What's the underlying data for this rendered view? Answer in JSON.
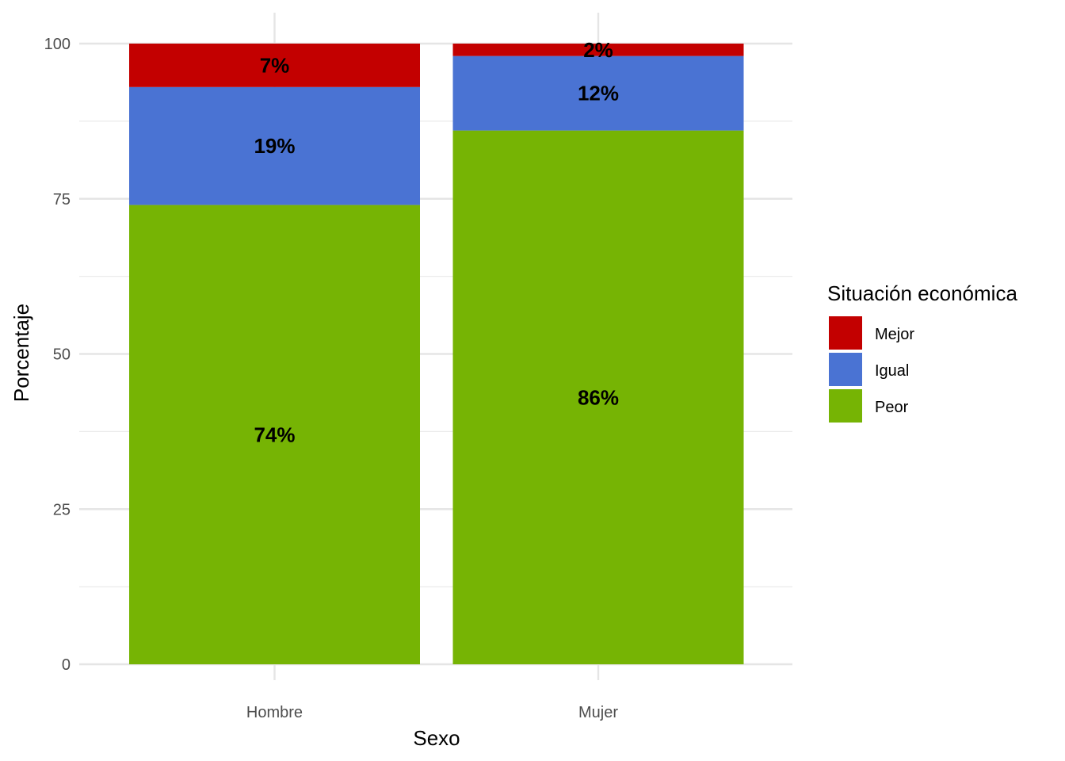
{
  "chart_data": {
    "type": "bar",
    "stacked": true,
    "xlabel": "Sexo",
    "ylabel": "Porcentaje",
    "ylim": [
      0,
      100
    ],
    "yticks": [
      0,
      25,
      50,
      75,
      100
    ],
    "grid": true,
    "legend_title": "Situación económica",
    "legend_position": "right",
    "categories": [
      "Hombre",
      "Mujer"
    ],
    "series": [
      {
        "name": "Peor",
        "color": "#76B404",
        "values": [
          74,
          86
        ],
        "labels": [
          "74%",
          "86%"
        ]
      },
      {
        "name": "Igual",
        "color": "#4A73D3",
        "values": [
          19,
          12
        ],
        "labels": [
          "19%",
          "12%"
        ]
      },
      {
        "name": "Mejor",
        "color": "#C30000",
        "values": [
          7,
          2
        ],
        "labels": [
          "7%",
          "2%"
        ]
      }
    ],
    "legend_order": [
      "Mejor",
      "Igual",
      "Peor"
    ]
  }
}
